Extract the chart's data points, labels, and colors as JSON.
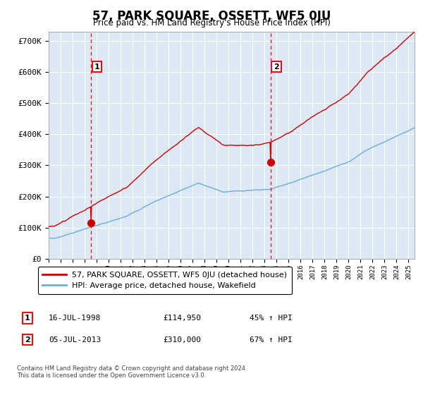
{
  "title": "57, PARK SQUARE, OSSETT, WF5 0JU",
  "subtitle": "Price paid vs. HM Land Registry's House Price Index (HPI)",
  "bg_color": "#dce9f5",
  "hpi_color": "#6baed6",
  "price_color": "#cc0000",
  "ylim": [
    0,
    730000
  ],
  "yticks": [
    0,
    100000,
    200000,
    300000,
    400000,
    500000,
    600000,
    700000
  ],
  "ytick_labels": [
    "£0",
    "£100K",
    "£200K",
    "£300K",
    "£400K",
    "£500K",
    "£600K",
    "£700K"
  ],
  "sale1_t": 1998.54,
  "sale1_p": 114950,
  "sale2_t": 2013.51,
  "sale2_p": 310000,
  "legend_line1": "57, PARK SQUARE, OSSETT, WF5 0JU (detached house)",
  "legend_line2": "HPI: Average price, detached house, Wakefield",
  "anno1_date": "16-JUL-1998",
  "anno1_price": "£114,950",
  "anno1_hpi": "45% ↑ HPI",
  "anno2_date": "05-JUL-2013",
  "anno2_price": "£310,000",
  "anno2_hpi": "67% ↑ HPI",
  "footer": "Contains HM Land Registry data © Crown copyright and database right 2024.\nThis data is licensed under the Open Government Licence v3.0.",
  "xmin": 1995.0,
  "xmax": 2025.5
}
